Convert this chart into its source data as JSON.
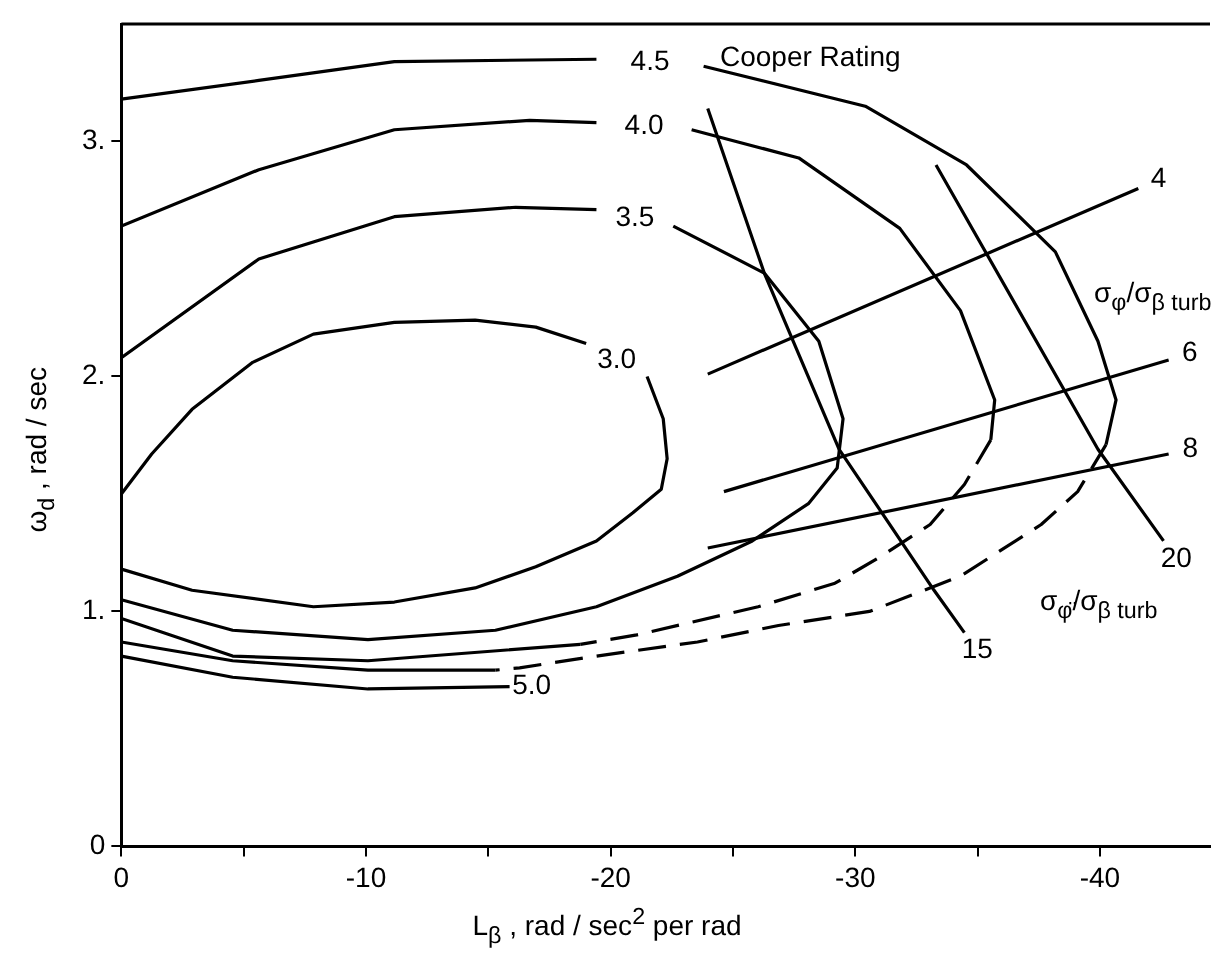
{
  "chart_data": {
    "type": "line",
    "xlabel": "L$_{β}$ ,  rad / sec$^{2}$ per rad",
    "ylabel": "ω$_{d}$ ,  rad / sec",
    "xlim": [
      0,
      -44.5
    ],
    "xticks": [
      0,
      {
        "value": -5,
        "label": null
      },
      -10,
      {
        "value": -15,
        "label": null
      },
      -20,
      {
        "value": -25,
        "label": null
      },
      -30,
      {
        "value": -35,
        "label": null
      },
      -40
    ],
    "ylim": [
      0,
      3.5
    ],
    "yticks": [
      0,
      {
        "value": 1,
        "label": "1."
      },
      {
        "value": 2,
        "label": "2."
      },
      {
        "value": 3,
        "label": "3."
      }
    ],
    "grid": false,
    "legend": false,
    "marker": "none",
    "annotations": [
      "Cooper Rating",
      "σ$_{φ}$/σ$_{β turb}$",
      "σ$_{φ̈}$/σ$_{β turb}$"
    ],
    "series": [
      {
        "name": "3.0",
        "color": "#000000",
        "line_style": "solid",
        "x": [
          0,
          -1.24,
          -2.89,
          -5.37,
          -7.85,
          -11.16,
          -14.46,
          -16.94,
          -19.0,
          -20.2,
          -21.49,
          -22.15,
          -22.31,
          -22.07,
          -20.91,
          -19.42,
          -16.94,
          -14.46,
          -11.16,
          -7.85,
          -2.89,
          0
        ],
        "values": [
          1.5,
          1.67,
          1.86,
          2.06,
          2.18,
          2.23,
          2.24,
          2.21,
          2.14,
          null,
          2.0,
          1.82,
          1.65,
          1.52,
          1.42,
          1.3,
          1.19,
          1.1,
          1.04,
          1.02,
          1.09,
          1.18
        ]
      },
      {
        "name": "3.5",
        "color": "#000000",
        "line_style": "solid",
        "x": [
          0,
          -5.62,
          -11.16,
          -16.12,
          -19.42,
          -21.0,
          -22.56,
          -26.28,
          -28.51,
          -29.5,
          -29.26,
          -28.1,
          -25.79,
          -22.73,
          -19.42,
          -15.29,
          -10.08,
          -4.55,
          0
        ],
        "values": [
          2.08,
          2.5,
          2.68,
          2.72,
          2.71,
          null,
          2.64,
          2.44,
          2.15,
          1.82,
          1.61,
          1.46,
          1.3,
          1.15,
          1.02,
          0.92,
          0.88,
          0.92,
          1.05
        ]
      },
      {
        "name": "4.0",
        "color": "#000000",
        "line_style": "solid",
        "x": [
          0,
          -5.62,
          -11.16,
          -16.69,
          -19.42,
          -21.4,
          -23.31,
          -27.69,
          -31.82,
          -34.3,
          -35.7,
          -35.54,
          -27.0,
          -18.76,
          -10.08,
          -4.55,
          0
        ],
        "values": [
          2.64,
          2.88,
          3.05,
          3.09,
          3.08,
          null,
          3.05,
          2.93,
          2.63,
          2.28,
          1.9,
          1.73,
          null,
          0.86,
          0.79,
          0.81,
          0.97
        ]
      },
      {
        "color": "#000000",
        "line_style": "dashed",
        "x": [
          -35.54,
          -34.46,
          -33.06,
          -30.99,
          -29.17,
          -26.03,
          -23.14,
          -21.07,
          -18.76
        ],
        "values": [
          1.73,
          1.54,
          1.37,
          1.23,
          1.12,
          1.02,
          0.95,
          0.9,
          0.86
        ]
      },
      {
        "name": "4.5",
        "color": "#000000",
        "line_style": "solid",
        "x": [
          0,
          -5.62,
          -11.16,
          -19.42,
          -21.6,
          -23.8,
          -30.41,
          -34.55,
          -38.18,
          -39.92,
          -40.66,
          -40.25,
          -28.0,
          -15.29,
          -10.08,
          -4.55,
          0
        ],
        "values": [
          3.18,
          3.26,
          3.34,
          3.35,
          null,
          3.32,
          3.15,
          2.9,
          2.53,
          2.15,
          1.9,
          1.71,
          null,
          0.75,
          0.75,
          0.79,
          0.87
        ]
      },
      {
        "color": "#000000",
        "line_style": "dashed",
        "x": [
          -40.25,
          -39.09,
          -37.6,
          -34.3,
          -30.58,
          -26.86,
          -23.55,
          -19.42,
          -16.28,
          -15.29
        ],
        "values": [
          1.71,
          1.51,
          1.37,
          1.15,
          1.0,
          0.94,
          0.87,
          0.81,
          0.76,
          0.75
        ]
      },
      {
        "name": "5.0",
        "color": "#000000",
        "line_style": "solid",
        "x": [
          0,
          -4.55,
          -10.08,
          -15.87
        ],
        "values": [
          0.81,
          0.72,
          0.67,
          0.68
        ]
      },
      {
        "name": "4",
        "color": "#000000",
        "line_style": "solid",
        "x": [
          -23.97,
          -41.57
        ],
        "values": [
          2.01,
          2.8
        ]
      },
      {
        "name": "6",
        "color": "#000000",
        "line_style": "solid",
        "x": [
          -24.63,
          -42.81
        ],
        "values": [
          1.51,
          2.07
        ]
      },
      {
        "name": "8",
        "color": "#000000",
        "line_style": "solid",
        "x": [
          -23.97,
          -42.81
        ],
        "values": [
          1.27,
          1.67
        ]
      },
      {
        "name": "15",
        "color": "#000000",
        "line_style": "solid",
        "x": [
          -23.97,
          -26.28,
          -29.34,
          -33.22,
          -34.46
        ],
        "values": [
          3.14,
          2.44,
          1.69,
          1.09,
          0.91
        ]
      },
      {
        "name": "20",
        "color": "#000000",
        "line_style": "solid",
        "x": [
          -33.3,
          -39.92,
          -42.6
        ],
        "values": [
          2.9,
          1.69,
          1.3
        ]
      }
    ]
  }
}
